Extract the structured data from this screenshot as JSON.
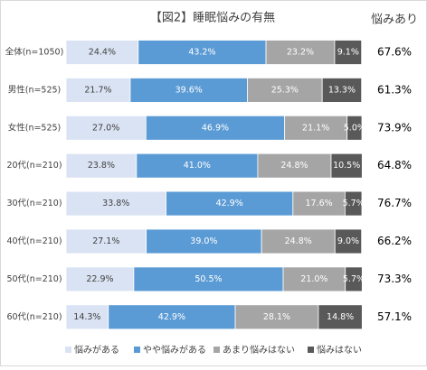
{
  "chart_data": {
    "type": "stacked-bar-horizontal",
    "title": "【図2】睡眠悩みの有無",
    "categories": [
      "全体(n=1050)",
      "男性(n=525)",
      "女性(n=525)",
      "20代(n=210)",
      "30代(n=210)",
      "40代(n=210)",
      "50代(n=210)",
      "60代(n=210)"
    ],
    "xlim": [
      0,
      100
    ],
    "series": [
      {
        "name": "悩みがある",
        "color": "#dae3f3",
        "values": [
          24.4,
          21.7,
          27.0,
          23.8,
          33.8,
          27.1,
          22.9,
          14.3
        ],
        "value_labels": [
          "24.4%",
          "21.7%",
          "27.0%",
          "23.8%",
          "33.8%",
          "27.1%",
          "22.9%",
          "14.3%"
        ]
      },
      {
        "name": "やや悩みがある",
        "color": "#5b9bd5",
        "values": [
          43.2,
          39.6,
          46.9,
          41.0,
          42.9,
          39.0,
          50.5,
          42.9
        ],
        "value_labels": [
          "43.2%",
          "39.6%",
          "46.9%",
          "41.0%",
          "42.9%",
          "39.0%",
          "50.5%",
          "42.9%"
        ]
      },
      {
        "name": "あまり悩みはない",
        "color": "#a5a5a5",
        "values": [
          23.2,
          25.3,
          21.1,
          24.8,
          17.6,
          24.8,
          21.0,
          28.1
        ],
        "value_labels": [
          "23.2%",
          "25.3%",
          "21.1%",
          "24.8%",
          "17.6%",
          "24.8%",
          "21.0%",
          "28.1%"
        ]
      },
      {
        "name": "悩みはない",
        "color": "#595959",
        "values": [
          9.1,
          13.3,
          5.0,
          10.5,
          5.7,
          9.0,
          5.7,
          14.8
        ],
        "value_labels": [
          "9.1%",
          "13.3%",
          "5.0%",
          "10.5%",
          "5.7%",
          "9.0%",
          "5.7%",
          "14.8%"
        ]
      }
    ],
    "totals": {
      "title": "悩みあり",
      "labels": [
        "67.6%",
        "61.3%",
        "73.9%",
        "64.8%",
        "76.7%",
        "66.2%",
        "73.3%",
        "57.1%"
      ]
    },
    "legend": "bottom"
  }
}
